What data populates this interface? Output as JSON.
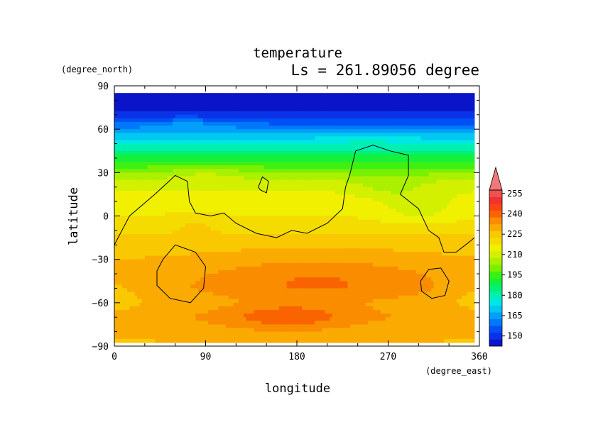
{
  "chart_data": {
    "type": "heatmap",
    "title": "temperature",
    "subtitle": "Ls = 261.89056 degree",
    "xlabel": "longitude",
    "ylabel": "latitude",
    "xunit": "(degree_east)",
    "yunit": "(degree_north)",
    "xlim": [
      0,
      360
    ],
    "ylim": [
      -90,
      90
    ],
    "data_extent": {
      "lon": [
        0,
        355
      ],
      "lat": [
        -85,
        85
      ]
    },
    "x_ticks": [
      0,
      90,
      180,
      270,
      360
    ],
    "y_ticks": [
      90,
      60,
      30,
      0,
      -30,
      -60,
      -90
    ],
    "x_tick_labels": [
      "0",
      "90",
      "180",
      "270",
      "360"
    ],
    "y_tick_labels": [
      "90",
      "60",
      "30",
      "0",
      "−30",
      "−60",
      "−90"
    ],
    "colorbar": {
      "levels": [
        145,
        150,
        155,
        160,
        165,
        170,
        175,
        180,
        185,
        190,
        195,
        200,
        205,
        210,
        215,
        220,
        225,
        230,
        235,
        240,
        245,
        250,
        255,
        260
      ],
      "colors": [
        "#0a14c8",
        "#0a32e6",
        "#0050f5",
        "#0078fa",
        "#00a0fa",
        "#00c8f0",
        "#00e6e6",
        "#00f0b4",
        "#00f078",
        "#14f03c",
        "#3cf014",
        "#78f000",
        "#aaf000",
        "#d2f000",
        "#f0f000",
        "#f5dc00",
        "#fac800",
        "#faaa00",
        "#fa8c00",
        "#fa6400",
        "#fa4614",
        "#f03232",
        "#f05050",
        "#f07878"
      ],
      "tick_labels": [
        "150",
        "165",
        "180",
        "195",
        "210",
        "225",
        "240",
        "255"
      ],
      "tick_values": [
        150,
        165,
        180,
        195,
        210,
        225,
        240,
        255
      ],
      "extend": "max"
    },
    "lat_profile": {
      "lat": [
        85,
        75,
        70,
        65,
        60,
        55,
        50,
        45,
        40,
        35,
        30,
        25,
        20,
        10,
        0,
        -10,
        -20,
        -30,
        -40,
        -50,
        -60,
        -70,
        -80,
        -85
      ],
      "temp": [
        148,
        149,
        152,
        158,
        165,
        172,
        180,
        186,
        192,
        198,
        204,
        210,
        214,
        218,
        220,
        224,
        228,
        230,
        232,
        233,
        231,
        234,
        232,
        230
      ]
    },
    "anomalies": [
      {
        "lon": 72,
        "lat": 63,
        "dlat": 6,
        "rlon": 45,
        "rlat": 5
      },
      {
        "lon": 250,
        "lat": 55,
        "dlat": 4,
        "rlon": 45,
        "rlat": 5
      },
      {
        "lon": 90,
        "lat": 30,
        "dlat": 5,
        "rlon": 40,
        "rlat": 7
      },
      {
        "lon": 270,
        "lat": 20,
        "dlat": -5,
        "rlon": 35,
        "rlat": 8
      },
      {
        "lon": 300,
        "lat": 5,
        "dlat": -6,
        "rlon": 40,
        "rlat": 12
      },
      {
        "lon": 80,
        "lat": -5,
        "dlat": 3,
        "rlon": 25,
        "rlat": 6
      },
      {
        "lon": 200,
        "lat": -45,
        "dlat": 8,
        "rlon": 110,
        "rlat": 18
      },
      {
        "lon": 170,
        "lat": -70,
        "dlat": 9,
        "rlon": 60,
        "rlat": 9
      },
      {
        "lon": 360,
        "lat": -55,
        "dlat": -4,
        "rlon": 30,
        "rlat": 15
      },
      {
        "lon": 0,
        "lat": -55,
        "dlat": -4,
        "rlon": 30,
        "rlat": 15
      }
    ],
    "contours": [
      [
        [
          0,
          -20
        ],
        [
          15,
          0
        ],
        [
          40,
          15
        ],
        [
          60,
          28
        ],
        [
          72,
          24
        ],
        [
          74,
          10
        ],
        [
          80,
          2
        ],
        [
          95,
          0
        ],
        [
          108,
          2
        ],
        [
          120,
          -5
        ],
        [
          140,
          -12
        ],
        [
          160,
          -15
        ],
        [
          175,
          -10
        ],
        [
          190,
          -12
        ],
        [
          210,
          -5
        ],
        [
          225,
          5
        ],
        [
          228,
          20
        ],
        [
          232,
          28
        ],
        [
          238,
          45
        ],
        [
          255,
          49
        ],
        [
          272,
          45
        ],
        [
          290,
          42
        ],
        [
          290,
          28
        ],
        [
          282,
          15
        ],
        [
          300,
          5
        ],
        [
          310,
          -10
        ],
        [
          320,
          -15
        ],
        [
          325,
          -25
        ],
        [
          337,
          -25
        ],
        [
          350,
          -18
        ],
        [
          355,
          -15
        ]
      ],
      [
        [
          142,
          20
        ],
        [
          146,
          27
        ],
        [
          152,
          24
        ],
        [
          150,
          16
        ],
        [
          144,
          18
        ],
        [
          142,
          20
        ]
      ],
      [
        [
          48,
          -30
        ],
        [
          60,
          -20
        ],
        [
          80,
          -25
        ],
        [
          90,
          -35
        ],
        [
          88,
          -50
        ],
        [
          75,
          -60
        ],
        [
          55,
          -57
        ],
        [
          42,
          -48
        ],
        [
          42,
          -38
        ],
        [
          48,
          -30
        ]
      ],
      [
        [
          302,
          -45
        ],
        [
          310,
          -37
        ],
        [
          322,
          -36
        ],
        [
          330,
          -45
        ],
        [
          326,
          -55
        ],
        [
          313,
          -57
        ],
        [
          303,
          -52
        ],
        [
          302,
          -45
        ]
      ]
    ]
  }
}
